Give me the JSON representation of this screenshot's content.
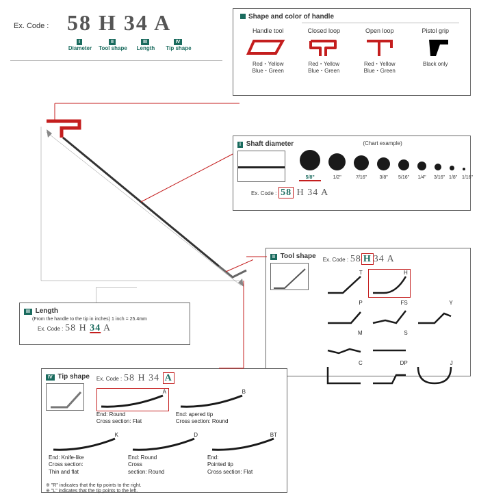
{
  "excode_label": "Ex. Code :",
  "main_code": {
    "p1": "58",
    "p2": "H",
    "p3": "34",
    "p4": "A"
  },
  "main_sub": [
    {
      "badge": "I",
      "label": "Diameter"
    },
    {
      "badge": "II",
      "label": "Tool shape"
    },
    {
      "badge": "III",
      "label": "Length"
    },
    {
      "badge": "IV",
      "label": "Tip shape"
    }
  ],
  "handle_section": {
    "title": "Shape and color of handle",
    "items": [
      {
        "name": "Handle tool",
        "sub": "Red・Yellow\nBlue・Green",
        "color": "#c41e1e",
        "type": "handle"
      },
      {
        "name": "Closed loop",
        "sub": "Red・Yellow\nBlue・Green",
        "color": "#c41e1e",
        "type": "closed"
      },
      {
        "name": "Open loop",
        "sub": "Red・Yellow\nBlue・Green",
        "color": "#c41e1e",
        "type": "open"
      },
      {
        "name": "Pistol grip",
        "sub": "Black only",
        "color": "#000",
        "type": "pistol"
      }
    ]
  },
  "diameter": {
    "badge": "I",
    "title": "Shaft diameter",
    "chart_label": "(Chart example)",
    "sizes": [
      {
        "d": 30,
        "l": "5/8\""
      },
      {
        "d": 25,
        "l": "1/2\""
      },
      {
        "d": 22,
        "l": "7/16\""
      },
      {
        "d": 19,
        "l": "3/8\""
      },
      {
        "d": 16,
        "l": "5/16\""
      },
      {
        "d": 13,
        "l": "1/4\""
      },
      {
        "d": 10,
        "l": "3/16\""
      },
      {
        "d": 7,
        "l": "1/8\""
      },
      {
        "d": 4,
        "l": "1/16\""
      }
    ],
    "code": {
      "p1": "58",
      "p2": "H 34 A"
    }
  },
  "length": {
    "badge": "III",
    "title": "Length",
    "note": "(From the handle to the tip in inches) 1 inch = 25.4mm",
    "code": {
      "p1": "58 H ",
      "p2": "34",
      "p3": " A"
    }
  },
  "toolshape": {
    "badge": "II",
    "title": "Tool shape",
    "code": {
      "p1": "58",
      "p2": "H",
      "p3": "34 A"
    },
    "shapes": [
      "T",
      "H",
      "P",
      "FS",
      "Y",
      "M",
      "S",
      "C",
      "DP",
      "J"
    ]
  },
  "tip": {
    "badge": "IV",
    "title": "Tip shape",
    "code": {
      "p1": "58 H 34",
      "p2": "A"
    },
    "tips": [
      {
        "code": "A",
        "desc": "End: Round\nCross section: Flat",
        "sel": true
      },
      {
        "code": "B",
        "desc": "End: apered tip\nCross section: Round"
      },
      {
        "code": "K",
        "desc": "End: Knife-like\nCross section:\nThin and flat"
      },
      {
        "code": "D",
        "desc": "End: Round\nCross\nsection: Round"
      },
      {
        "code": "BT",
        "desc": "End:\nPointed tip\nCross section: Flat"
      }
    ],
    "notes": [
      "※ \"R\"  indicates that the tip points to the right.",
      "※ \"L\"  indicates that the tip points to the left."
    ]
  },
  "colors": {
    "red": "#c41e1e",
    "teal": "#1a6b5e",
    "gray": "#888"
  }
}
